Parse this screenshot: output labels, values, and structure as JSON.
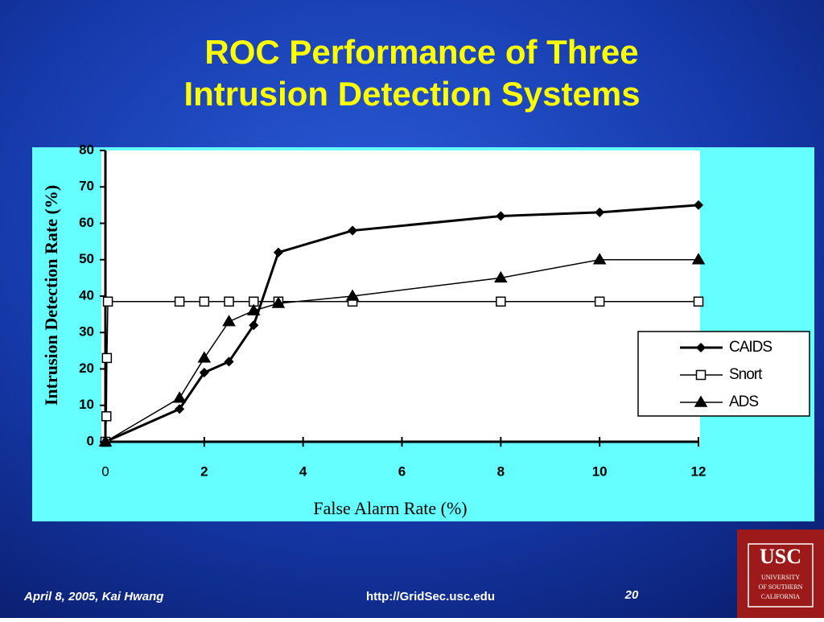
{
  "slide": {
    "title": [
      "ROC Performance of Three",
      "Intrusion Detection Systems"
    ],
    "footer": {
      "left": "April 8, 2005,  Kai Hwang",
      "center": "http://GridSec.usc.edu",
      "right": "20"
    },
    "logo": [
      "USC",
      "UNIVERSITY",
      "OF SOUTHERN",
      "CALIFORNIA"
    ]
  },
  "chart_data": {
    "type": "line",
    "x_label": "False Alarm Rate (%)",
    "y_label": "Intrusion Detection Rate (%)",
    "xlim": [
      0,
      12
    ],
    "ylim": [
      0,
      80
    ],
    "xticks": [
      0,
      2,
      4,
      6,
      8,
      10,
      12
    ],
    "yticks": [
      0,
      10,
      20,
      30,
      40,
      50,
      60,
      70,
      80
    ],
    "grid": false,
    "legend": "right",
    "series": [
      {
        "name": "CAIDS",
        "color": "#000000",
        "marker": "diamond",
        "width": 3,
        "x": [
          0,
          1.5,
          2,
          2.5,
          3,
          3.5,
          5,
          8,
          10,
          12
        ],
        "values": [
          0,
          9,
          19,
          22,
          32,
          52,
          58,
          62,
          63,
          65
        ]
      },
      {
        "name": "Snort",
        "color": "#000000",
        "marker": "square",
        "width": 1.5,
        "x": [
          0,
          0.02,
          0.03,
          0.05,
          1.5,
          2,
          2.5,
          3,
          3.5,
          5,
          8,
          10,
          12
        ],
        "values": [
          0,
          7,
          23,
          38.5,
          38.5,
          38.5,
          38.5,
          38.5,
          38.5,
          38.5,
          38.5,
          38.5,
          38.5
        ]
      },
      {
        "name": "ADS",
        "color": "#000000",
        "marker": "triangle",
        "width": 1.5,
        "x": [
          0,
          1.5,
          2,
          2.5,
          3,
          3.5,
          5,
          8,
          10,
          12
        ],
        "values": [
          0,
          12,
          23,
          33,
          36,
          38,
          40,
          45,
          50,
          50
        ]
      }
    ]
  }
}
